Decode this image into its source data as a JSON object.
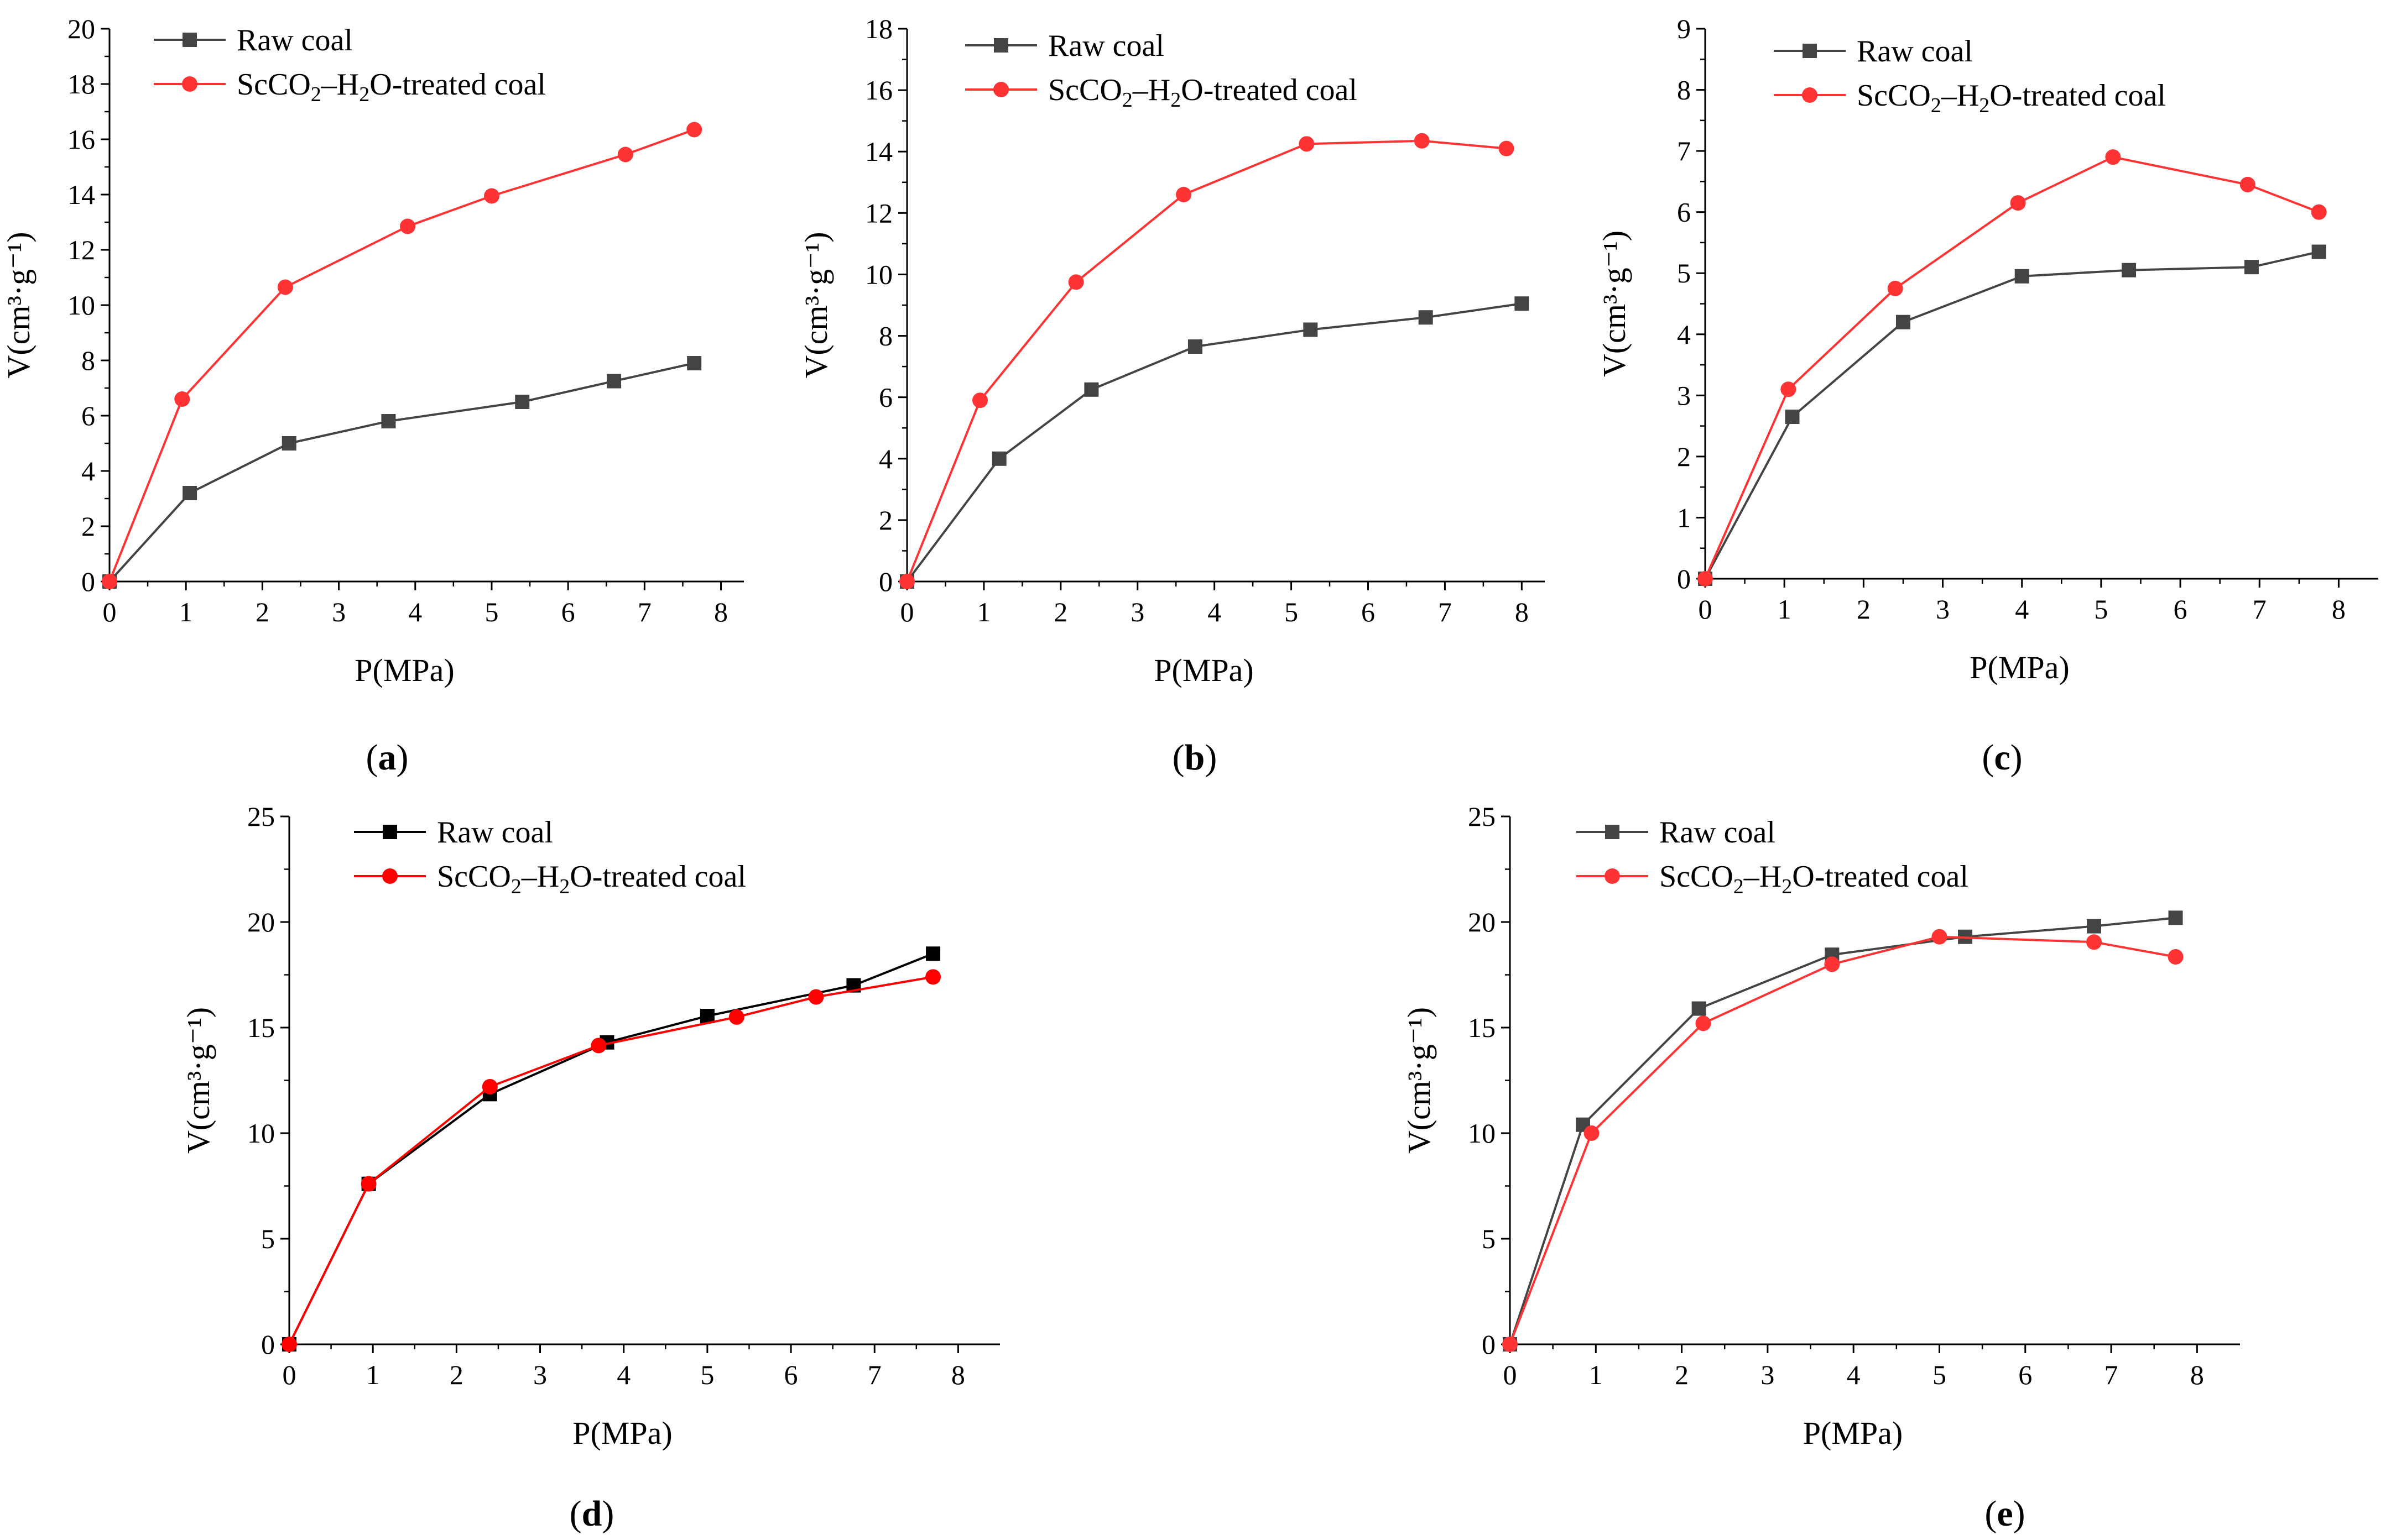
{
  "legend_labels": {
    "raw": "Raw  coal",
    "treated_prefix": "ScCO",
    "treated_sub1": "2",
    "treated_mid": "–H",
    "treated_sub2": "2",
    "treated_suffix": "O-treated  coal"
  },
  "chart_data": [
    {
      "type": "line",
      "panel_label": "(a)",
      "xlabel": "P(MPa)",
      "ylabel": "V(cm³·g⁻¹)",
      "xlim": [
        0,
        8.3
      ],
      "ylim": [
        0,
        20
      ],
      "xticks": [
        0,
        1,
        2,
        3,
        4,
        5,
        6,
        7,
        8
      ],
      "yticks": [
        0,
        2,
        4,
        6,
        8,
        10,
        12,
        14,
        16,
        18,
        20
      ],
      "series": [
        {
          "name": "Raw  coal",
          "color": "#444444",
          "marker": "square",
          "x": [
            0,
            1.05,
            2.35,
            3.65,
            5.4,
            6.6,
            7.65
          ],
          "y": [
            0,
            3.2,
            5.0,
            5.8,
            6.5,
            7.25,
            7.9
          ]
        },
        {
          "name": "ScCO2–H2O-treated  coal",
          "color": "#ff3333",
          "marker": "circle",
          "x": [
            0,
            0.95,
            2.3,
            3.9,
            5.0,
            6.75,
            7.65
          ],
          "y": [
            0,
            6.6,
            10.65,
            12.85,
            13.95,
            15.45,
            16.35
          ]
        }
      ]
    },
    {
      "type": "line",
      "panel_label": "(b)",
      "xlabel": "P(MPa)",
      "ylabel": "V(cm³·g⁻¹)",
      "xlim": [
        0,
        8.3
      ],
      "ylim": [
        0,
        18
      ],
      "xticks": [
        0,
        1,
        2,
        3,
        4,
        5,
        6,
        7,
        8
      ],
      "yticks": [
        0,
        2,
        4,
        6,
        8,
        10,
        12,
        14,
        16,
        18
      ],
      "series": [
        {
          "name": "Raw  coal",
          "color": "#444444",
          "marker": "square",
          "x": [
            0,
            1.2,
            2.4,
            3.75,
            5.25,
            6.75,
            8.0
          ],
          "y": [
            0,
            4.0,
            6.25,
            7.65,
            8.2,
            8.6,
            9.05
          ]
        },
        {
          "name": "ScCO2–H2O-treated  coal",
          "color": "#ff3333",
          "marker": "circle",
          "x": [
            0,
            0.95,
            2.2,
            3.6,
            5.2,
            6.7,
            7.8
          ],
          "y": [
            0,
            5.9,
            9.75,
            12.6,
            14.25,
            14.35,
            14.1
          ]
        }
      ]
    },
    {
      "type": "line",
      "panel_label": "(c)",
      "xlabel": "P(MPa)",
      "ylabel": "V(cm³·g⁻¹)",
      "xlim": [
        0,
        8.5
      ],
      "ylim": [
        0,
        9
      ],
      "xticks": [
        0,
        1,
        2,
        3,
        4,
        5,
        6,
        7,
        8
      ],
      "yticks": [
        0,
        1,
        2,
        3,
        4,
        5,
        6,
        7,
        8,
        9
      ],
      "series": [
        {
          "name": "Raw  coal",
          "color": "#444444",
          "marker": "square",
          "x": [
            0,
            1.1,
            2.5,
            4.0,
            5.35,
            6.9,
            7.75
          ],
          "y": [
            0,
            2.65,
            4.2,
            4.95,
            5.05,
            5.1,
            5.35
          ]
        },
        {
          "name": "ScCO2–H2O-treated  coal",
          "color": "#ff3333",
          "marker": "circle",
          "x": [
            0,
            1.05,
            2.4,
            3.95,
            5.15,
            6.85,
            7.75
          ],
          "y": [
            0,
            3.1,
            4.75,
            6.15,
            6.9,
            6.45,
            6.0
          ]
        }
      ]
    },
    {
      "type": "line",
      "panel_label": "(d)",
      "xlabel": "P(MPa)",
      "ylabel": "V(cm³·g⁻¹)",
      "xlim": [
        0,
        8.5
      ],
      "ylim": [
        0,
        25
      ],
      "xticks": [
        0,
        1,
        2,
        3,
        4,
        5,
        6,
        7,
        8
      ],
      "yticks": [
        0,
        5,
        10,
        15,
        20,
        25
      ],
      "series": [
        {
          "name": "Raw  coal",
          "color": "#000000",
          "marker": "square",
          "x": [
            0,
            0.95,
            2.4,
            3.8,
            5.0,
            6.75,
            7.7
          ],
          "y": [
            0,
            7.6,
            11.85,
            14.3,
            15.55,
            17.0,
            18.5
          ]
        },
        {
          "name": "ScCO2–H2O-treated  coal",
          "color": "#ff0000",
          "marker": "circle",
          "x": [
            0,
            0.95,
            2.4,
            3.7,
            5.35,
            6.3,
            7.7
          ],
          "y": [
            0,
            7.6,
            12.2,
            14.15,
            15.5,
            16.45,
            17.4
          ]
        }
      ]
    },
    {
      "type": "line",
      "panel_label": "(e)",
      "xlabel": "P(MPa)",
      "ylabel": "V(cm³·g⁻¹)",
      "xlim": [
        0,
        8.5
      ],
      "ylim": [
        0,
        25
      ],
      "xticks": [
        0,
        1,
        2,
        3,
        4,
        5,
        6,
        7,
        8
      ],
      "yticks": [
        0,
        5,
        10,
        15,
        20,
        25
      ],
      "series": [
        {
          "name": "Raw  coal",
          "color": "#444444",
          "marker": "square",
          "x": [
            0,
            0.85,
            2.2,
            3.75,
            5.3,
            6.8,
            7.75
          ],
          "y": [
            0,
            10.4,
            15.9,
            18.45,
            19.3,
            19.8,
            20.2
          ]
        },
        {
          "name": "ScCO2–H2O-treated  coal",
          "color": "#ff3333",
          "marker": "circle",
          "x": [
            0,
            0.95,
            2.25,
            3.75,
            5.0,
            6.8,
            7.75
          ],
          "y": [
            0,
            10.0,
            15.2,
            18.0,
            19.3,
            19.05,
            18.35
          ]
        }
      ]
    }
  ]
}
